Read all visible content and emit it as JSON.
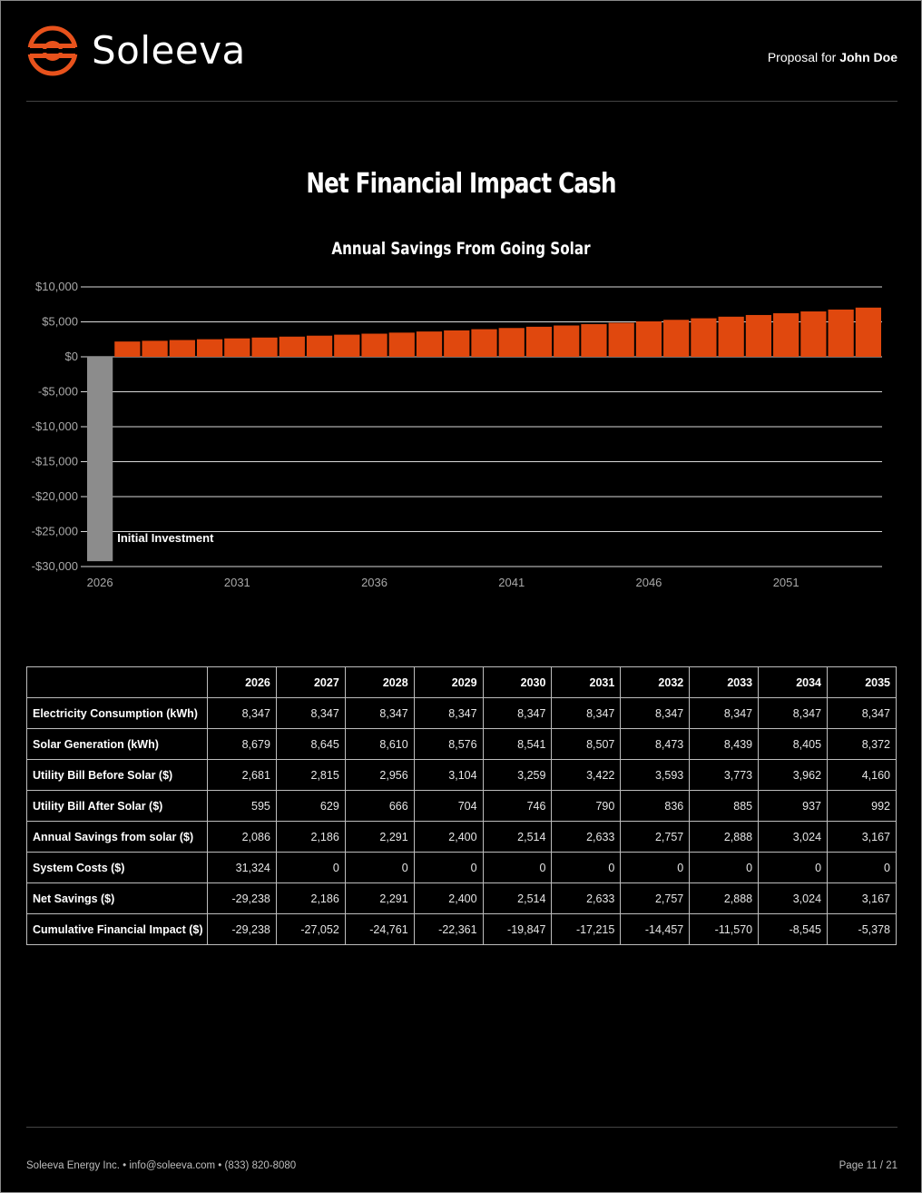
{
  "brand": {
    "name": "Soleeva",
    "accent": "#e8521c"
  },
  "header": {
    "proposal_prefix": "Proposal for",
    "client_name": "John Doe"
  },
  "page_title": "Net Financial Impact Cash",
  "chart_data": {
    "type": "bar",
    "title": "Annual Savings From Going Solar",
    "xlabel": "",
    "ylabel": "",
    "ylim": [
      -30000,
      10000
    ],
    "y_ticks": [
      10000,
      5000,
      0,
      -5000,
      -10000,
      -15000,
      -20000,
      -25000,
      -30000
    ],
    "y_tick_labels": [
      "$10,000",
      "$5,000",
      "$0",
      "-$5,000",
      "-$10,000",
      "-$15,000",
      "-$20,000",
      "-$25,000",
      "-$30,000"
    ],
    "x_tick_labels": [
      "2026",
      "2031",
      "2036",
      "2041",
      "2046",
      "2051"
    ],
    "categories": [
      "2026",
      "2027",
      "2028",
      "2029",
      "2030",
      "2031",
      "2032",
      "2033",
      "2034",
      "2035",
      "2036",
      "2037",
      "2038",
      "2039",
      "2040",
      "2041",
      "2042",
      "2043",
      "2044",
      "2045",
      "2046",
      "2047",
      "2048",
      "2049",
      "2050",
      "2051",
      "2052",
      "2053",
      "2054"
    ],
    "values": [
      -29238,
      2186,
      2291,
      2400,
      2514,
      2633,
      2757,
      2888,
      3024,
      3167,
      3310,
      3460,
      3620,
      3780,
      3950,
      4120,
      4300,
      4480,
      4670,
      4870,
      5070,
      5290,
      5510,
      5740,
      5980,
      6230,
      6490,
      6760,
      7040
    ],
    "colors": {
      "investment": "#8c8c8c",
      "savings": "#e0480e",
      "grid": "#d9d9d9"
    },
    "annotation": "Initial Investment",
    "grid": true
  },
  "table": {
    "headers": [
      "",
      "2026",
      "2027",
      "2028",
      "2029",
      "2030",
      "2031",
      "2032",
      "2033",
      "2034",
      "2035"
    ],
    "rows": [
      {
        "label": "Electricity Consumption (kWh)",
        "values": [
          "8,347",
          "8,347",
          "8,347",
          "8,347",
          "8,347",
          "8,347",
          "8,347",
          "8,347",
          "8,347",
          "8,347"
        ]
      },
      {
        "label": "Solar Generation (kWh)",
        "values": [
          "8,679",
          "8,645",
          "8,610",
          "8,576",
          "8,541",
          "8,507",
          "8,473",
          "8,439",
          "8,405",
          "8,372"
        ]
      },
      {
        "label": "Utility Bill Before Solar ($)",
        "values": [
          "2,681",
          "2,815",
          "2,956",
          "3,104",
          "3,259",
          "3,422",
          "3,593",
          "3,773",
          "3,962",
          "4,160"
        ]
      },
      {
        "label": "Utility Bill After Solar ($)",
        "values": [
          "595",
          "629",
          "666",
          "704",
          "746",
          "790",
          "836",
          "885",
          "937",
          "992"
        ]
      },
      {
        "label": "Annual Savings from solar ($)",
        "values": [
          "2,086",
          "2,186",
          "2,291",
          "2,400",
          "2,514",
          "2,633",
          "2,757",
          "2,888",
          "3,024",
          "3,167"
        ]
      },
      {
        "label": "System Costs ($)",
        "values": [
          "31,324",
          "0",
          "0",
          "0",
          "0",
          "0",
          "0",
          "0",
          "0",
          "0"
        ]
      },
      {
        "label": "Net Savings ($)",
        "values": [
          "-29,238",
          "2,186",
          "2,291",
          "2,400",
          "2,514",
          "2,633",
          "2,757",
          "2,888",
          "3,024",
          "3,167"
        ]
      },
      {
        "label": "Cumulative Financial Impact ($)",
        "values": [
          "-29,238",
          "-27,052",
          "-24,761",
          "-22,361",
          "-19,847",
          "-17,215",
          "-14,457",
          "-11,570",
          "-8,545",
          "-5,378"
        ]
      }
    ]
  },
  "footer": {
    "contact": "Soleeva Energy Inc. • info@soleeva.com • (833) 820-8080",
    "page": "Page 11 / 21"
  }
}
